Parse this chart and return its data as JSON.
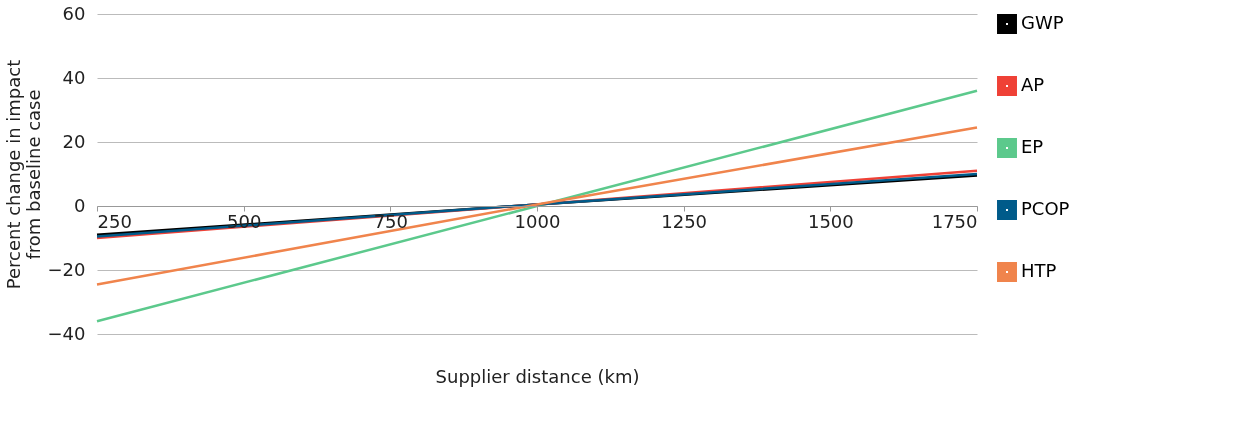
{
  "chart_data": {
    "type": "line",
    "xlabel": "Supplier distance (km)",
    "ylabel": "Percent change in impact\nfrom baseline case",
    "x": [
      250,
      1000,
      1750
    ],
    "series": [
      {
        "name": "GWP",
        "color": "#000000",
        "values": [
          -9,
          0.5,
          9.5
        ]
      },
      {
        "name": "AP",
        "color": "#ef4136",
        "values": [
          -10,
          0.5,
          11
        ]
      },
      {
        "name": "EP",
        "color": "#5cc98c",
        "values": [
          -36,
          0,
          36
        ]
      },
      {
        "name": "PCOP",
        "color": "#005b8a",
        "values": [
          -9.5,
          0.5,
          10
        ]
      },
      {
        "name": "HTP",
        "color": "#f0844c",
        "values": [
          -24.5,
          0.5,
          24.5
        ]
      }
    ],
    "xlim": [
      250,
      1750
    ],
    "xticks": [
      250,
      500,
      750,
      1000,
      1250,
      1500,
      1750
    ],
    "ylim": [
      -40,
      60
    ],
    "yticks": [
      -40,
      -20,
      0,
      20,
      40,
      60
    ],
    "grid": "y",
    "legend": "right",
    "marker": "none",
    "line_style": "solid"
  }
}
